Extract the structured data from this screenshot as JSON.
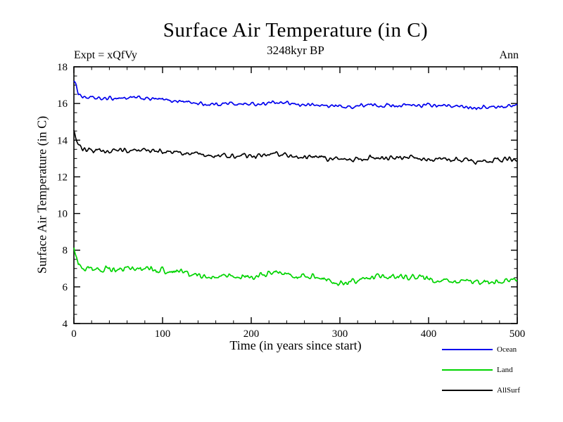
{
  "chart_data": {
    "type": "line",
    "title": "Surface Air Temperature (in C)",
    "subtitle": "3248kyr BP",
    "annotation_left": "Expt = xQfVy",
    "annotation_right": "Ann",
    "xlabel": "Time (in years since start)",
    "ylabel": "Surface Air Temperature (in C)",
    "xlim": [
      0,
      500
    ],
    "ylim": [
      4,
      18
    ],
    "xticks": [
      0,
      100,
      200,
      300,
      400,
      500
    ],
    "x_minor_step": 20,
    "yticks": [
      4,
      6,
      8,
      10,
      12,
      14,
      16,
      18
    ],
    "y_minor_step": 0.5,
    "grid": false,
    "legend_position": "bottom-right",
    "axis_color": "#000000",
    "background": "#ffffff",
    "series": [
      {
        "name": "Ocean",
        "color": "#0000ee",
        "noise": 0.07,
        "knots_x": [
          0,
          2,
          5,
          10,
          20,
          30,
          50,
          75,
          100,
          125,
          150,
          175,
          200,
          225,
          250,
          275,
          300,
          310,
          325,
          350,
          375,
          400,
          425,
          450,
          475,
          500
        ],
        "knots_y": [
          17.3,
          17.0,
          16.6,
          16.35,
          16.3,
          16.25,
          16.3,
          16.3,
          16.2,
          16.1,
          15.95,
          16.0,
          15.95,
          16.05,
          15.95,
          15.9,
          15.85,
          15.8,
          15.9,
          15.9,
          15.9,
          15.9,
          15.85,
          15.8,
          15.8,
          15.9
        ]
      },
      {
        "name": "Land",
        "color": "#00d400",
        "noise": 0.12,
        "knots_x": [
          0,
          2,
          5,
          10,
          20,
          30,
          50,
          75,
          100,
          125,
          150,
          175,
          200,
          225,
          250,
          275,
          300,
          310,
          325,
          350,
          375,
          400,
          425,
          450,
          475,
          500
        ],
        "knots_y": [
          8.3,
          7.8,
          7.3,
          7.0,
          6.95,
          6.9,
          6.95,
          7.0,
          6.9,
          6.8,
          6.5,
          6.6,
          6.5,
          6.75,
          6.55,
          6.5,
          6.2,
          6.15,
          6.5,
          6.55,
          6.6,
          6.45,
          6.35,
          6.25,
          6.3,
          6.4
        ]
      },
      {
        "name": "AllSurf",
        "color": "#000000",
        "noise": 0.09,
        "knots_x": [
          0,
          2,
          5,
          10,
          20,
          30,
          50,
          75,
          100,
          125,
          150,
          175,
          200,
          225,
          250,
          275,
          300,
          310,
          325,
          350,
          375,
          400,
          425,
          450,
          475,
          500
        ],
        "knots_y": [
          14.5,
          14.1,
          13.8,
          13.5,
          13.45,
          13.4,
          13.45,
          13.5,
          13.35,
          13.3,
          13.15,
          13.2,
          13.15,
          13.25,
          13.1,
          13.05,
          12.95,
          12.9,
          13.0,
          13.05,
          13.05,
          13.0,
          12.95,
          12.85,
          12.9,
          13.0
        ]
      }
    ]
  }
}
